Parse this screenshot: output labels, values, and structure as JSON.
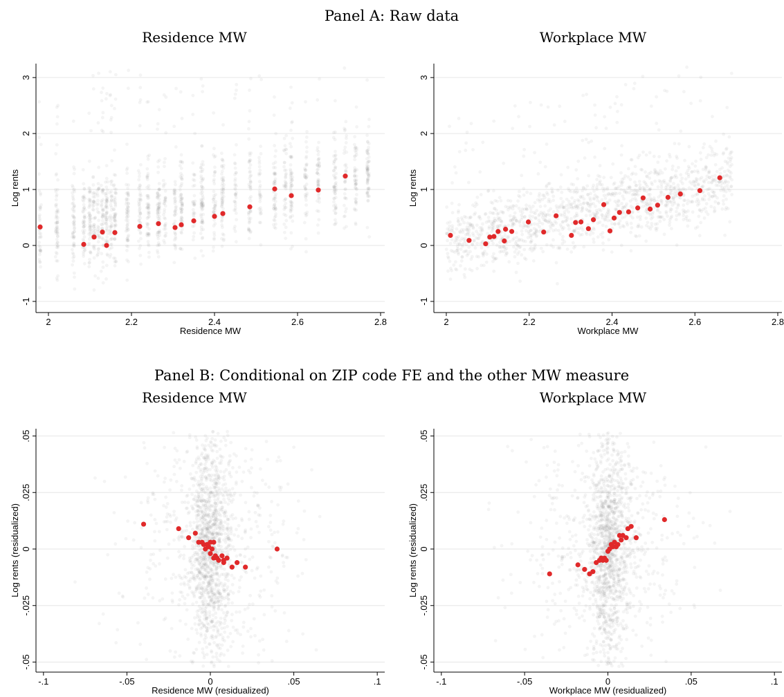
{
  "panel_a_title": "Panel A: Raw data",
  "panel_b_title": "Panel B: Conditional on ZIP code FE and the other MW measure",
  "colors": {
    "binned": "#e0292a",
    "raw": "#8a8a8a",
    "grid": "#e6e6e6",
    "axis": "#000000"
  },
  "chart_data": [
    {
      "type": "scatter",
      "id": "a-residence",
      "title": "Residence MW",
      "xlabel": "Residence MW",
      "ylabel": "Log rents",
      "xlim": [
        1.98,
        2.8
      ],
      "ylim": [
        -1.1,
        3.2
      ],
      "xticks": [
        2,
        2.2,
        2.4,
        2.6,
        2.8
      ],
      "xtick_labels": [
        "2",
        "2.2",
        "2.4",
        "2.6",
        "2.8"
      ],
      "yticks": [
        -1,
        0,
        1,
        2,
        3
      ],
      "ytick_labels": [
        "-1",
        "0",
        "1",
        "2",
        "3"
      ],
      "grid": true,
      "series": [
        {
          "points": [
            [
              1.98,
              0.33
            ],
            [
              2.085,
              0.02
            ],
            [
              2.11,
              0.15
            ],
            [
              2.13,
              0.24
            ],
            [
              2.14,
              0.0
            ],
            [
              2.16,
              0.23
            ],
            [
              2.22,
              0.34
            ],
            [
              2.265,
              0.39
            ],
            [
              2.305,
              0.32
            ],
            [
              2.32,
              0.37
            ],
            [
              2.35,
              0.44
            ],
            [
              2.4,
              0.52
            ],
            [
              2.42,
              0.57
            ],
            [
              2.485,
              0.69
            ],
            [
              2.545,
              1.01
            ],
            [
              2.585,
              0.89
            ],
            [
              2.65,
              0.99
            ],
            [
              2.715,
              1.24
            ]
          ]
        }
      ]
    },
    {
      "type": "scatter",
      "id": "a-workplace",
      "title": "Workplace MW",
      "xlabel": "Workplace MW",
      "ylabel": "Log rents",
      "xlim": [
        1.98,
        2.8
      ],
      "ylim": [
        -1.1,
        3.2
      ],
      "xticks": [
        2,
        2.2,
        2.4,
        2.6,
        2.8
      ],
      "xtick_labels": [
        "2",
        "2.2",
        "2.4",
        "2.6",
        "2.8"
      ],
      "yticks": [
        -1,
        0,
        1,
        2,
        3
      ],
      "ytick_labels": [
        "-1",
        "0",
        "1",
        "2",
        "3"
      ],
      "grid": true,
      "series": [
        {
          "points": [
            [
              2.01,
              0.18
            ],
            [
              2.055,
              0.09
            ],
            [
              2.095,
              0.03
            ],
            [
              2.105,
              0.15
            ],
            [
              2.115,
              0.16
            ],
            [
              2.125,
              0.25
            ],
            [
              2.14,
              0.08
            ],
            [
              2.143,
              0.29
            ],
            [
              2.158,
              0.25
            ],
            [
              2.198,
              0.42
            ],
            [
              2.235,
              0.24
            ],
            [
              2.265,
              0.53
            ],
            [
              2.302,
              0.18
            ],
            [
              2.312,
              0.41
            ],
            [
              2.325,
              0.42
            ],
            [
              2.343,
              0.3
            ],
            [
              2.355,
              0.46
            ],
            [
              2.38,
              0.73
            ],
            [
              2.395,
              0.26
            ],
            [
              2.405,
              0.49
            ],
            [
              2.418,
              0.59
            ],
            [
              2.44,
              0.6
            ],
            [
              2.462,
              0.67
            ],
            [
              2.475,
              0.85
            ],
            [
              2.492,
              0.65
            ],
            [
              2.51,
              0.72
            ],
            [
              2.535,
              0.86
            ],
            [
              2.565,
              0.92
            ],
            [
              2.612,
              0.98
            ],
            [
              2.66,
              1.21
            ]
          ]
        }
      ]
    },
    {
      "type": "scatter",
      "id": "b-residence",
      "title": "Residence MW",
      "xlabel": "Residence MW (residualized)",
      "ylabel": "Log rents (residualized)",
      "xlim": [
        -0.102,
        0.102
      ],
      "ylim": [
        -0.052,
        0.052
      ],
      "xticks": [
        -0.1,
        -0.05,
        0,
        0.05,
        0.1
      ],
      "xtick_labels": [
        "-.1",
        "-.05",
        "0",
        ".05",
        ".1"
      ],
      "yticks": [
        -0.05,
        -0.025,
        0,
        0.025,
        0.05
      ],
      "ytick_labels": [
        "-.05",
        "-.025",
        "0",
        ".025",
        ".05"
      ],
      "grid": true,
      "series": [
        {
          "points": [
            [
              -0.04,
              0.011
            ],
            [
              -0.019,
              0.009
            ],
            [
              -0.013,
              0.005
            ],
            [
              -0.009,
              0.007
            ],
            [
              -0.007,
              0.003
            ],
            [
              -0.005,
              0.003
            ],
            [
              -0.004,
              0.002
            ],
            [
              -0.003,
              0.0
            ],
            [
              -0.002,
              0.002
            ],
            [
              -0.001,
              0.001
            ],
            [
              0.0,
              0.003
            ],
            [
              0.001,
              0.0
            ],
            [
              0.002,
              0.003
            ],
            [
              0.0,
              -0.002
            ],
            [
              0.002,
              -0.004
            ],
            [
              0.003,
              -0.003
            ],
            [
              0.004,
              -0.004
            ],
            [
              0.005,
              -0.005
            ],
            [
              0.007,
              -0.003
            ],
            [
              0.008,
              -0.005
            ],
            [
              0.01,
              -0.004
            ],
            [
              0.008,
              -0.006
            ],
            [
              0.013,
              -0.008
            ],
            [
              0.016,
              -0.006
            ],
            [
              0.021,
              -0.008
            ],
            [
              0.04,
              0.0
            ]
          ]
        }
      ]
    },
    {
      "type": "scatter",
      "id": "b-workplace",
      "title": "Workplace MW",
      "xlabel": "Workplace MW (residualized)",
      "ylabel": "Log rents (residualized)",
      "xlim": [
        -0.102,
        0.102
      ],
      "ylim": [
        -0.052,
        0.052
      ],
      "xticks": [
        -0.1,
        -0.05,
        0,
        0.05,
        0.1
      ],
      "xtick_labels": [
        "-.1",
        "-.05",
        "0",
        ".05",
        ".1"
      ],
      "yticks": [
        -0.05,
        -0.025,
        0,
        0.025,
        0.05
      ],
      "ytick_labels": [
        "-.05",
        "-.025",
        "0",
        ".025",
        ".05"
      ],
      "grid": true,
      "series": [
        {
          "points": [
            [
              -0.035,
              -0.011
            ],
            [
              -0.018,
              -0.007
            ],
            [
              -0.014,
              -0.009
            ],
            [
              -0.011,
              -0.011
            ],
            [
              -0.009,
              -0.01
            ],
            [
              -0.007,
              -0.006
            ],
            [
              -0.005,
              -0.005
            ],
            [
              -0.004,
              -0.004
            ],
            [
              -0.003,
              -0.005
            ],
            [
              -0.002,
              -0.004
            ],
            [
              -0.001,
              -0.005
            ],
            [
              0.0,
              -0.001
            ],
            [
              0.001,
              0.0
            ],
            [
              0.002,
              0.002
            ],
            [
              0.003,
              0.001
            ],
            [
              0.004,
              0.003
            ],
            [
              0.005,
              0.001
            ],
            [
              0.006,
              0.002
            ],
            [
              0.007,
              0.006
            ],
            [
              0.008,
              0.004
            ],
            [
              0.009,
              0.006
            ],
            [
              0.011,
              0.005
            ],
            [
              0.012,
              0.009
            ],
            [
              0.014,
              0.01
            ],
            [
              0.017,
              0.005
            ],
            [
              0.034,
              0.013
            ]
          ]
        }
      ]
    }
  ]
}
